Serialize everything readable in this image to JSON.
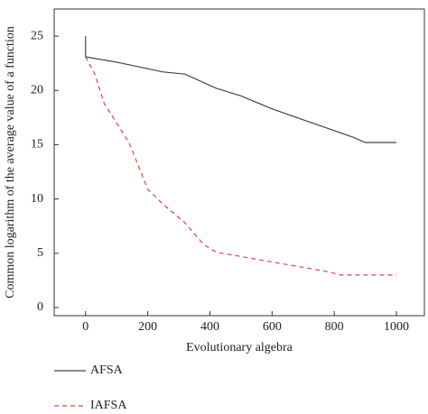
{
  "chart_data": {
    "type": "line",
    "xlabel": "Evolutionary algebra",
    "ylabel": "Common logarithm of the average value of a function",
    "xlim": [
      -101,
      1090
    ],
    "ylim": [
      -0.75,
      27.5
    ],
    "xticks": [
      0,
      200,
      400,
      600,
      800,
      1000
    ],
    "yticks": [
      0,
      5,
      10,
      15,
      20,
      25
    ],
    "series": [
      {
        "name": "AFSA",
        "color": "#444444",
        "dash": false,
        "x": [
          0,
          0,
          100,
          200,
          250,
          320,
          420,
          500,
          600,
          700,
          800,
          860,
          900,
          1000
        ],
        "values": [
          25,
          23.1,
          22.6,
          22.0,
          21.7,
          21.5,
          20.2,
          19.5,
          18.3,
          17.3,
          16.3,
          15.7,
          15.2,
          15.2
        ]
      },
      {
        "name": "IAFSA",
        "color": "#e8423a",
        "dash": true,
        "x": [
          0,
          30,
          60,
          100,
          140,
          200,
          250,
          320,
          380,
          420,
          500,
          600,
          700,
          780,
          820,
          1000
        ],
        "values": [
          23.1,
          21.5,
          18.8,
          17.0,
          15.2,
          10.9,
          9.5,
          7.8,
          5.8,
          5.1,
          4.7,
          4.2,
          3.7,
          3.3,
          3.0,
          3.0
        ]
      }
    ]
  }
}
